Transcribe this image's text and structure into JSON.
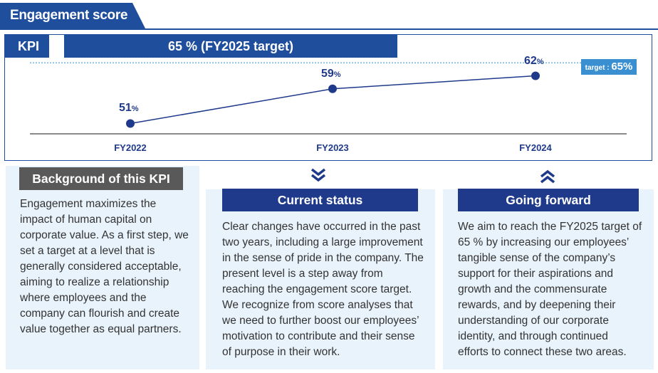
{
  "header": {
    "title": "Engagement score"
  },
  "kpi": {
    "label": "KPI",
    "value": "65 % (FY2025 target)",
    "target": {
      "prefix": "target : ",
      "value": "65",
      "unit": "%"
    }
  },
  "chart_data": {
    "type": "line",
    "categories": [
      "FY2022",
      "FY2023",
      "FY2024"
    ],
    "series": [
      {
        "values": [
          51,
          59,
          62
        ]
      }
    ],
    "value_labels": [
      "51",
      "59",
      "62"
    ],
    "unit": "%",
    "target_line": 65,
    "ylim": [
      45,
      68
    ],
    "colors": {
      "line": "#1f3a8a",
      "marker": "#1f3a8a",
      "target_line": "#5aa6dc"
    }
  },
  "sections": {
    "background": {
      "heading": "Background of this KPI",
      "lines": [
        "Engagement maximizes the",
        "impact of human capital on",
        "corporate value. As a first step, we",
        "set a target at a level that is",
        "generally considered acceptable,",
        "aiming to realize a relationship",
        "where employees and the",
        "company can flourish and create",
        "value together as equal partners."
      ]
    },
    "current": {
      "heading": "Current status",
      "lines": [
        "Clear changes have occurred in the past",
        "two years, including a large improvement",
        "in the sense of pride in the company. The",
        "present level is a step away from",
        "reaching the engagement score target.",
        "We recognize from score analyses that",
        "we need to further boost our employees’",
        "motivation to contribute and their sense",
        "of purpose in their work."
      ]
    },
    "forward": {
      "heading": "Going forward",
      "lines": [
        "We aim to reach the FY2025 target of",
        "65 % by increasing our employees’",
        "tangible sense of the company’s",
        "support for their aspirations and",
        "growth and the commensurate",
        "rewards, and by deepening their",
        "understanding of our corporate",
        "identity, and through continued",
        "efforts to connect these two areas."
      ]
    }
  },
  "icons": {
    "down": "double-chevron-down-icon",
    "up": "double-chevron-up-icon"
  },
  "colors": {
    "navy": "#1f4e9c",
    "dark_navy": "#1f3a8a",
    "card_bg": "#e9f3fc",
    "gray_heading": "#595959",
    "target_box": "#3a8fd1"
  }
}
